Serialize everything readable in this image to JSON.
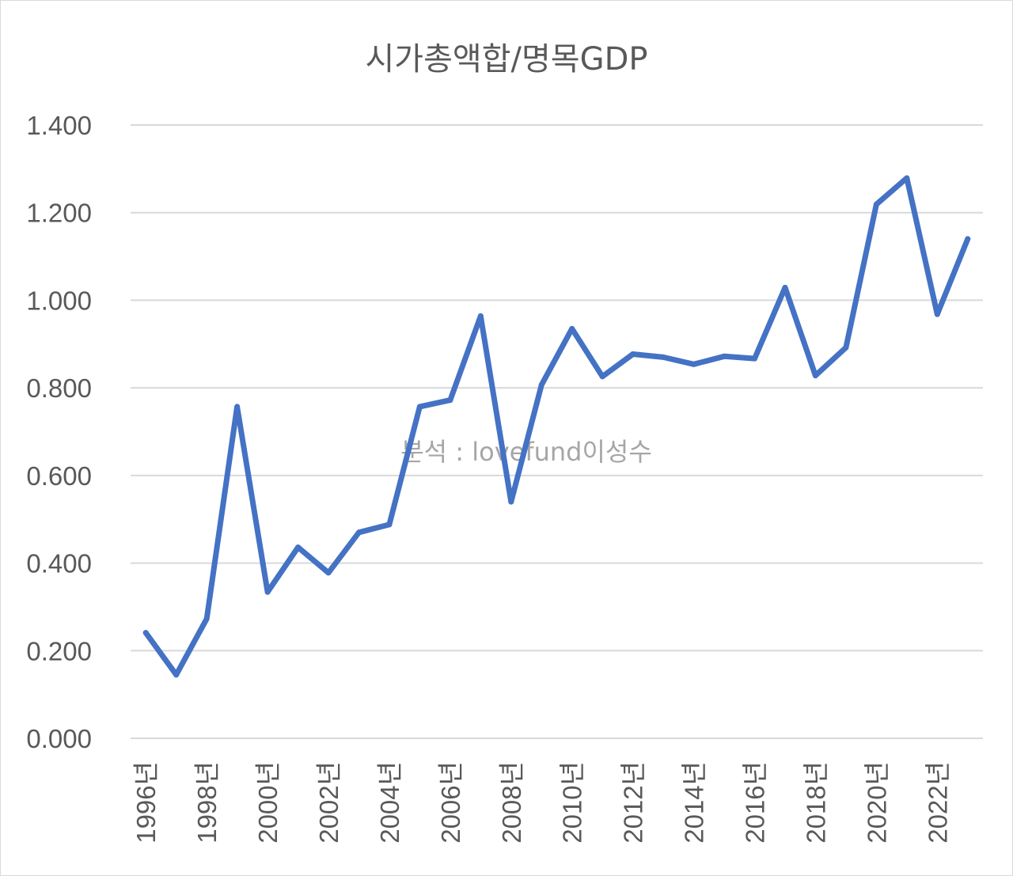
{
  "chart_data": {
    "type": "line",
    "title": "시가총액합/명목GDP",
    "watermark": "분석 : lovefund이성수",
    "xlabel": "",
    "ylabel": "",
    "ylim": [
      0,
      1.4
    ],
    "y_ticks": [
      "0.000",
      "0.200",
      "0.400",
      "0.600",
      "0.800",
      "1.000",
      "1.200",
      "1.400"
    ],
    "x_tick_labels": [
      "1996년",
      "1998년",
      "2000년",
      "2002년",
      "2004년",
      "2006년",
      "2008년",
      "2010년",
      "2012년",
      "2014년",
      "2016년",
      "2018년",
      "2020년",
      "2022년"
    ],
    "grid": true,
    "legend": "none",
    "color": "#4472c4",
    "categories": [
      "1996년",
      "1997년",
      "1998년",
      "1999년",
      "2000년",
      "2001년",
      "2002년",
      "2003년",
      "2004년",
      "2005년",
      "2006년",
      "2007년",
      "2008년",
      "2009년",
      "2010년",
      "2011년",
      "2012년",
      "2013년",
      "2014년",
      "2015년",
      "2016년",
      "2017년",
      "2018년",
      "2019년",
      "2020년",
      "2021년",
      "2022년",
      "2023년"
    ],
    "values": [
      0.241,
      0.145,
      0.273,
      0.757,
      0.334,
      0.436,
      0.378,
      0.47,
      0.488,
      0.757,
      0.772,
      0.964,
      0.54,
      0.807,
      0.935,
      0.826,
      0.877,
      0.87,
      0.854,
      0.872,
      0.867,
      1.029,
      0.828,
      0.892,
      1.219,
      1.279,
      0.968,
      1.14
    ]
  }
}
